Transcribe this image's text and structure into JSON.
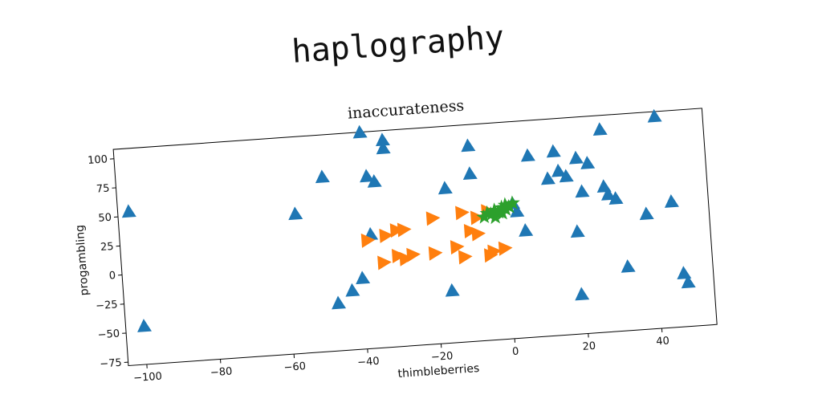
{
  "suptitle": "haplography",
  "chart_data": {
    "type": "scatter",
    "title": "inaccurateness",
    "xlabel": "thimbleberries",
    "ylabel": "progambling",
    "xlim": [
      -105,
      55
    ],
    "ylim": [
      -78,
      108
    ],
    "xticks": [
      -100,
      -80,
      -60,
      -40,
      -20,
      0,
      20,
      40
    ],
    "yticks": [
      -75,
      -50,
      -25,
      0,
      25,
      50,
      75,
      100
    ],
    "grid": false,
    "series": [
      {
        "marker": "triangle-up",
        "color": "#1f77b4",
        "points": [
          [
            -102,
            54
          ],
          [
            -100,
            -45
          ],
          [
            -57,
            42
          ],
          [
            -49,
            72
          ],
          [
            -38,
            108
          ],
          [
            -37,
            20
          ],
          [
            -37,
            70
          ],
          [
            -35,
            65
          ],
          [
            -32,
            100
          ],
          [
            -32,
            93
          ],
          [
            -40,
            -17
          ],
          [
            -43,
            -27
          ],
          [
            -47,
            -37
          ],
          [
            -16,
            55
          ],
          [
            -16,
            -33
          ],
          [
            -9,
            90
          ],
          [
            -9,
            66
          ],
          [
            2,
            38
          ],
          [
            3,
            31
          ],
          [
            5,
            14
          ],
          [
            7,
            78
          ],
          [
            12,
            57
          ],
          [
            14,
            80
          ],
          [
            15,
            63
          ],
          [
            17,
            58
          ],
          [
            20,
            73
          ],
          [
            19,
            10
          ],
          [
            19,
            -44
          ],
          [
            21,
            44
          ],
          [
            23,
            68
          ],
          [
            27,
            47
          ],
          [
            28,
            40
          ],
          [
            30,
            36
          ],
          [
            27,
            96
          ],
          [
            32,
            -23
          ],
          [
            38,
            21
          ],
          [
            42,
            104
          ],
          [
            45,
            30
          ],
          [
            47,
            -32
          ],
          [
            48,
            -40
          ]
        ]
      },
      {
        "marker": "triangle-right",
        "color": "#ff7f0e",
        "points": [
          [
            -38,
            15
          ],
          [
            -33,
            18
          ],
          [
            -30,
            22
          ],
          [
            -28,
            22
          ],
          [
            -34,
            -5
          ],
          [
            -30,
            0
          ],
          [
            -28,
            -3
          ],
          [
            -26,
            0
          ],
          [
            -20,
            0
          ],
          [
            -14,
            4
          ],
          [
            -12,
            -5
          ],
          [
            -10,
            17
          ],
          [
            -8,
            14
          ],
          [
            -5,
            -5
          ],
          [
            -4,
            -2
          ],
          [
            -1,
            0
          ],
          [
            -20,
            30
          ],
          [
            -12,
            33
          ],
          [
            -8,
            28
          ],
          [
            -5,
            33
          ]
        ]
      },
      {
        "marker": "star",
        "color": "#2ca02c",
        "points": [
          [
            -5,
            31
          ],
          [
            -3,
            33
          ],
          [
            -1,
            35
          ],
          [
            0,
            37
          ],
          [
            -6,
            28
          ],
          [
            -4,
            30
          ],
          [
            -2,
            31
          ],
          [
            1,
            35
          ],
          [
            -3,
            27
          ],
          [
            0,
            33
          ],
          [
            2,
            38
          ],
          [
            -1,
            30
          ]
        ]
      }
    ]
  }
}
